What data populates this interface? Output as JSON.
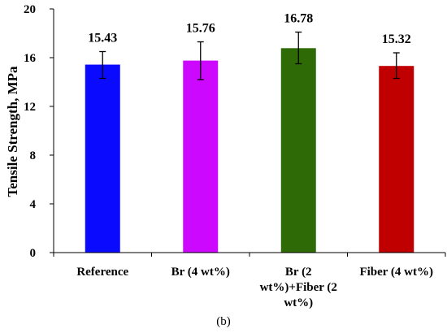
{
  "chart_data": {
    "type": "bar",
    "ylabel": "Tensile Strength, MPa",
    "xlabel": "",
    "ylim": [
      0,
      20
    ],
    "yticks": [
      0,
      4,
      8,
      12,
      16,
      20
    ],
    "categories": [
      [
        "Reference"
      ],
      [
        "Br (4 wt%)"
      ],
      [
        "Br (2",
        "wt%)+Fiber (2",
        "wt%)"
      ],
      [
        "Fiber (4 wt%)"
      ]
    ],
    "values": [
      15.43,
      15.76,
      16.78,
      15.32
    ],
    "value_labels": [
      "15.43",
      "15.76",
      "16.78",
      "15.32"
    ],
    "error_bars": [
      {
        "low": 14.3,
        "high": 16.5
      },
      {
        "low": 14.2,
        "high": 17.3
      },
      {
        "low": 15.5,
        "high": 18.1
      },
      {
        "low": 14.3,
        "high": 16.4
      }
    ],
    "colors": [
      "#0a0aff",
      "#cc08ff",
      "#2e6b06",
      "#c00000"
    ],
    "grid": false,
    "caption": "(b)"
  }
}
